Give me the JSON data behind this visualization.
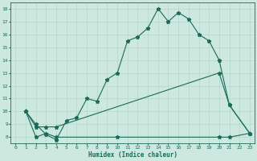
{
  "xlabel": "Humidex (Indice chaleur)",
  "ylabel": "",
  "xlim": [
    -0.5,
    23.5
  ],
  "ylim": [
    7.5,
    18.5
  ],
  "xticks": [
    0,
    1,
    2,
    3,
    4,
    5,
    6,
    7,
    8,
    9,
    10,
    11,
    12,
    13,
    14,
    15,
    16,
    17,
    18,
    19,
    20,
    21,
    22,
    23
  ],
  "yticks": [
    8,
    9,
    10,
    11,
    12,
    13,
    14,
    15,
    16,
    17,
    18
  ],
  "background_color": "#cce8df",
  "grid_color": "#b0d4c8",
  "line_color": "#1a6b5a",
  "line1_x": [
    1,
    2,
    3,
    4,
    5,
    6,
    7,
    8,
    9,
    10,
    11,
    12,
    13,
    14,
    15,
    16,
    17,
    18,
    19,
    20,
    21,
    23
  ],
  "line1_y": [
    10,
    9,
    8.2,
    7.8,
    9.3,
    9.5,
    11.0,
    10.8,
    12.5,
    13.0,
    15.5,
    15.8,
    16.5,
    18.0,
    17.0,
    17.7,
    17.2,
    16.0,
    15.5,
    14.0,
    10.5,
    8.3
  ],
  "line2_x": [
    1,
    2,
    3,
    4,
    20,
    21,
    23
  ],
  "line2_y": [
    10,
    8.8,
    8.8,
    8.8,
    13.0,
    10.5,
    8.3
  ],
  "line3_x": [
    1,
    2,
    3,
    4,
    10,
    20,
    21,
    23
  ],
  "line3_y": [
    10,
    8.0,
    8.3,
    8.0,
    8.0,
    8.0,
    8.0,
    8.3
  ]
}
